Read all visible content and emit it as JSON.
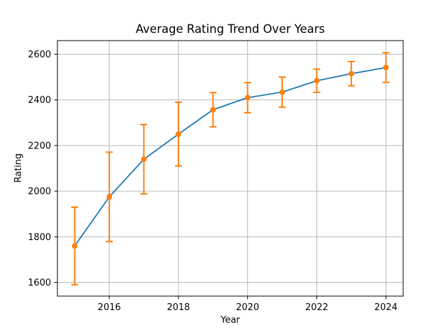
{
  "chart_data": {
    "type": "line",
    "title": "Average Rating Trend Over Years",
    "xlabel": "Year",
    "ylabel": "Rating",
    "x": [
      2015,
      2016,
      2017,
      2018,
      2019,
      2020,
      2021,
      2022,
      2023,
      2024
    ],
    "series": [
      {
        "name": "Average Rating",
        "values": [
          1760,
          1975,
          2140,
          2250,
          2357,
          2410,
          2434,
          2484,
          2515,
          2542
        ],
        "yerr": [
          170,
          196,
          152,
          140,
          75,
          66,
          66,
          51,
          53,
          65
        ],
        "line_color": "#1f77b4",
        "marker_color": "#ff7f0e",
        "errorbar_color": "#ff7f0e",
        "marker": "circle"
      }
    ],
    "xticks": [
      2016,
      2018,
      2020,
      2022,
      2024
    ],
    "yticks": [
      1600,
      1800,
      2000,
      2200,
      2400,
      2600
    ],
    "xlim": [
      2014.5,
      2024.5
    ],
    "ylim": [
      1540,
      2660
    ],
    "grid": true,
    "legend_position": "none",
    "grid_color": "#b0b0b0",
    "spine_color": "#000000",
    "text_color": "#000000",
    "background": "#ffffff"
  }
}
